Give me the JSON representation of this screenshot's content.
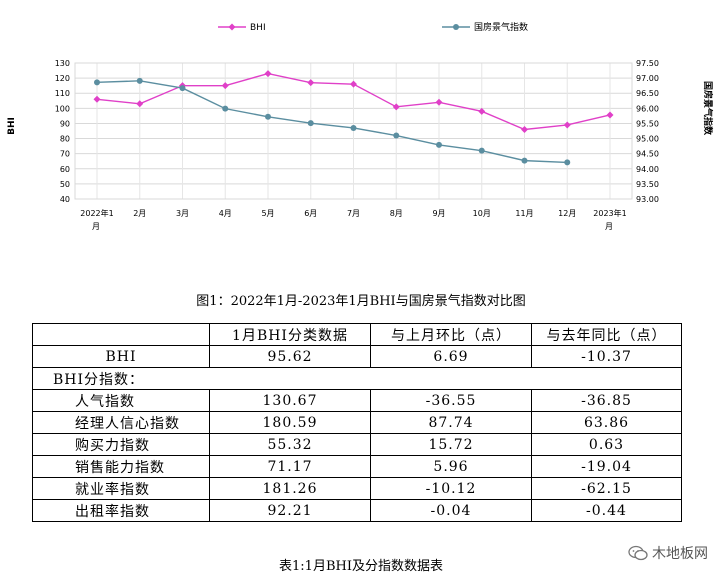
{
  "chart_data": {
    "type": "line",
    "categories": [
      "2022年1月",
      "2月",
      "3月",
      "4月",
      "5月",
      "6月",
      "7月",
      "8月",
      "9月",
      "10月",
      "11月",
      "12月",
      "2023年1月"
    ],
    "ylabel": "BHI",
    "y2label": "国房景气指数",
    "ylim": [
      40,
      130
    ],
    "y2lim": [
      93.0,
      97.5
    ],
    "yticks": [
      "40",
      "50",
      "60",
      "70",
      "80",
      "90",
      "100",
      "110",
      "120",
      "130"
    ],
    "y2ticks": [
      "93.00",
      "93.50",
      "94.00",
      "94.50",
      "95.00",
      "95.50",
      "96.00",
      "96.50",
      "97.00",
      "97.50"
    ],
    "legend_position": "top",
    "series": [
      {
        "name": "BHI",
        "axis": "left",
        "color": "#e040c8",
        "values": [
          106,
          103,
          115,
          115,
          123,
          117,
          116,
          101,
          104,
          98,
          86,
          89,
          95.62
        ]
      },
      {
        "name": "国房景气指数",
        "axis": "right",
        "color": "#5b8ea0",
        "values": [
          96.86,
          96.91,
          96.67,
          95.99,
          95.72,
          95.51,
          95.35,
          95.1,
          94.79,
          94.6,
          94.27,
          94.21,
          null
        ]
      }
    ]
  },
  "figure_caption": "图1：2022年1月-2023年1月BHI与国房景气指数对比图",
  "table": {
    "headers": [
      "",
      "1月BHI分类数据",
      "与上月环比（点）",
      "与去年同比（点）"
    ],
    "bhi_row": [
      "BHI",
      "95.62",
      "6.69",
      "-10.37"
    ],
    "section_label": "BHI分指数：",
    "rows": [
      [
        "人气指数",
        "130.67",
        "-36.55",
        "-36.85"
      ],
      [
        "经理人信心指数",
        "180.59",
        "87.74",
        "63.86"
      ],
      [
        "购买力指数",
        "55.32",
        "15.72",
        "0.63"
      ],
      [
        "销售能力指数",
        "71.17",
        "5.96",
        "-19.04"
      ],
      [
        "就业率指数",
        "181.26",
        "-10.12",
        "-62.15"
      ],
      [
        "出租率指数",
        "92.21",
        "-0.04",
        "-0.44"
      ]
    ]
  },
  "table_caption": "表1:1月BHI及分指数数据表",
  "watermark": "木地板网"
}
